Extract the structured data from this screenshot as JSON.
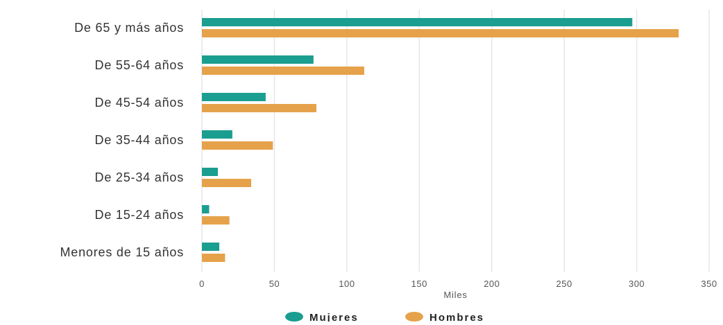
{
  "chart_data": {
    "type": "bar",
    "orientation": "horizontal",
    "categories": [
      "De 65 y más años",
      "De 55-64 años",
      "De 45-54 años",
      "De 35-44 años",
      "De 25-34 años",
      "De 15-24 años",
      "Menores de 15 años"
    ],
    "series": [
      {
        "name": "Mujeres",
        "color": "#1a9e8f",
        "values": [
          297,
          77,
          44,
          21,
          11,
          5,
          12
        ]
      },
      {
        "name": "Hombres",
        "color": "#e6a24a",
        "values": [
          329,
          112,
          79,
          49,
          34,
          19,
          16
        ]
      }
    ],
    "xlabel": "Miles",
    "ylabel": "",
    "xlim": [
      0,
      350
    ],
    "xticks": [
      "0",
      "50",
      "100",
      "150",
      "200",
      "250",
      "300",
      "350"
    ],
    "grid": true,
    "legend_position": "bottom-center"
  }
}
